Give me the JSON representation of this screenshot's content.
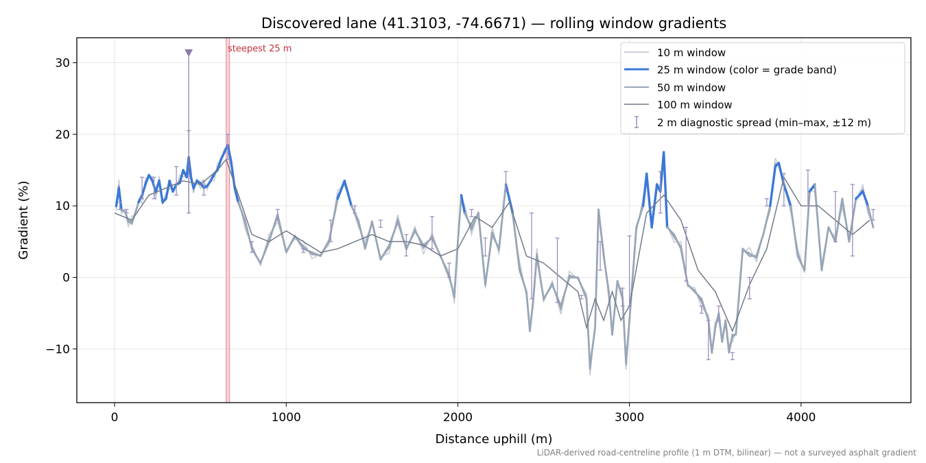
{
  "chart_data": {
    "type": "line",
    "title": "Discovered lane (41.3103, -74.6671) — rolling window gradients",
    "xlabel": "Distance uphill (m)",
    "ylabel": "Gradient (%)",
    "xlim": [
      -220,
      4640
    ],
    "ylim": [
      -17.5,
      33.5
    ],
    "x_ticks": [
      0,
      1000,
      2000,
      3000,
      4000
    ],
    "x_tick_labels": [
      "0",
      "1000",
      "2000",
      "3000",
      "4000"
    ],
    "y_ticks": [
      -10,
      0,
      10,
      20,
      30
    ],
    "y_tick_labels": [
      "−10",
      "0",
      "10",
      "20",
      "30"
    ],
    "grid": true,
    "legend_position": "top-right",
    "legend": [
      {
        "label": "10 m window",
        "color": "#b9c0cc"
      },
      {
        "label": "25 m window (color = grade band)",
        "color": "#3a78d6"
      },
      {
        "label": "50 m window",
        "color": "#98a6b6"
      },
      {
        "label": "100 m window",
        "color": "#707a88"
      },
      {
        "label": "2 m diagnostic spread (min–max, ±12 m)",
        "color": "#9a8fbf"
      }
    ],
    "grade_band_threshold": 10,
    "grade_band_colors": {
      "high": "#3a78d6",
      "low": "#98a6b6"
    },
    "steepest_25m": {
      "label": "steepest 25 m",
      "x_start": 650,
      "x_end": 670,
      "color": "#f4c2c8"
    },
    "spike_marker": {
      "x": 432,
      "y": 31.4,
      "color": "#8a7bab"
    },
    "footnote": "LiDAR-derived road-centreline profile (1 m DTM, bilinear) — not a surveyed asphalt gradient",
    "series": [
      {
        "name": "25 m window (color = grade band)",
        "x": [
          10,
          25,
          40,
          60,
          80,
          100,
          120,
          140,
          160,
          180,
          200,
          220,
          240,
          260,
          280,
          300,
          320,
          340,
          360,
          380,
          400,
          420,
          432,
          445,
          460,
          480,
          500,
          520,
          540,
          560,
          580,
          600,
          620,
          640,
          660,
          680,
          700,
          720,
          760,
          800,
          850,
          900,
          950,
          1000,
          1050,
          1100,
          1150,
          1200,
          1250,
          1300,
          1340,
          1380,
          1420,
          1460,
          1500,
          1550,
          1600,
          1650,
          1700,
          1750,
          1800,
          1850,
          1900,
          1950,
          1980,
          2000,
          2020,
          2040,
          2080,
          2120,
          2160,
          2200,
          2240,
          2280,
          2320,
          2360,
          2400,
          2420,
          2440,
          2460,
          2500,
          2550,
          2600,
          2650,
          2700,
          2750,
          2770,
          2800,
          2820,
          2850,
          2880,
          2900,
          2930,
          2960,
          2980,
          3000,
          3040,
          3080,
          3100,
          3130,
          3160,
          3180,
          3200,
          3220,
          3260,
          3300,
          3340,
          3380,
          3420,
          3460,
          3480,
          3500,
          3520,
          3540,
          3560,
          3580,
          3600,
          3620,
          3660,
          3700,
          3740,
          3780,
          3820,
          3850,
          3870,
          3900,
          3940,
          3980,
          4020,
          4050,
          4080,
          4120,
          4160,
          4200,
          4240,
          4280,
          4320,
          4360,
          4390,
          4420
        ],
        "y": [
          10,
          12.5,
          9.5,
          9.2,
          8,
          7.5,
          9,
          10.5,
          11.5,
          13,
          14.3,
          13.5,
          12,
          13.5,
          10.5,
          11,
          13.5,
          12,
          13,
          13.2,
          15,
          14,
          16.8,
          14,
          12.5,
          13.5,
          13.2,
          12.5,
          12.8,
          13.5,
          14.5,
          15,
          16.5,
          17.5,
          18.5,
          16,
          12.5,
          10.5,
          8,
          4,
          2,
          5,
          8.8,
          3.5,
          5.8,
          4,
          3.5,
          3,
          5.2,
          11,
          13.5,
          10,
          8,
          4,
          7.8,
          2.5,
          4.5,
          7.8,
          4,
          6.5,
          4.5,
          5.5,
          3,
          0,
          -2.5,
          5,
          11.5,
          9,
          7,
          9,
          -1,
          6,
          4,
          13,
          9,
          1,
          -2,
          -7.5,
          -3,
          3,
          -3,
          -1,
          -4,
          0,
          0,
          -3,
          -12.5,
          -7,
          9.5,
          3,
          -2,
          -8,
          -0.5,
          -3,
          -12,
          -6,
          7,
          10,
          14.5,
          7,
          13,
          12,
          17.5,
          7,
          6,
          4,
          -1,
          -2,
          -3,
          -6,
          -10.5,
          -7,
          -5,
          -9,
          -6,
          -10.5,
          -8,
          -8,
          4,
          3,
          3,
          6,
          10,
          15.5,
          16,
          13,
          10,
          3,
          1,
          12,
          13,
          1,
          7,
          5,
          11,
          5,
          11,
          12,
          10,
          7
        ]
      },
      {
        "name": "100 m window",
        "x": [
          0,
          100,
          200,
          300,
          400,
          500,
          600,
          650,
          700,
          800,
          900,
          1000,
          1100,
          1200,
          1300,
          1400,
          1500,
          1600,
          1700,
          1800,
          1900,
          2000,
          2100,
          2200,
          2300,
          2400,
          2500,
          2600,
          2700,
          2750,
          2800,
          2850,
          2900,
          2950,
          3000,
          3100,
          3200,
          3300,
          3400,
          3500,
          3600,
          3700,
          3800,
          3900,
          4000,
          4100,
          4200,
          4300,
          4400
        ],
        "y": [
          9,
          8,
          11.5,
          12.5,
          13.5,
          13,
          15,
          16.5,
          13,
          6,
          5,
          6.5,
          5,
          3.5,
          4,
          5,
          6,
          5,
          5,
          4.5,
          3,
          4,
          8.5,
          7,
          10.5,
          3,
          2,
          0,
          -2,
          -7,
          -3,
          -6,
          -2,
          -6,
          -4,
          9,
          11.5,
          8,
          1,
          -2,
          -7.5,
          -1,
          4,
          14,
          10,
          10,
          8,
          6,
          8
        ]
      },
      {
        "name": "2 m diagnostic spread (min–max, ±12 m)",
        "x": [
          30,
          70,
          160,
          230,
          360,
          432,
          520,
          660,
          800,
          950,
          1100,
          1260,
          1400,
          1550,
          1700,
          1850,
          1950,
          2080,
          2160,
          2280,
          2430,
          2580,
          2720,
          2830,
          2960,
          3000,
          3180,
          3330,
          3420,
          3460,
          3520,
          3600,
          3700,
          3800,
          3900,
          4040,
          4200,
          4300,
          4420
        ],
        "y_min": [
          9.5,
          9,
          11,
          11,
          11.5,
          9,
          11.5,
          16.5,
          3.5,
          8,
          3.5,
          5,
          9,
          7,
          3,
          4,
          0,
          8.5,
          3,
          12,
          -3,
          -3.5,
          -3,
          1,
          -4,
          -4,
          9,
          -0.5,
          -5,
          -11.5,
          -4,
          -11.5,
          -3,
          10,
          10,
          10,
          5,
          3,
          8
        ],
        "y_max": [
          10.5,
          9.5,
          14,
          14,
          15.5,
          20.5,
          13.5,
          20,
          5,
          9.5,
          4,
          8,
          10,
          8,
          6,
          8.5,
          2,
          9.5,
          5.5,
          14.8,
          9,
          5.5,
          -2.5,
          5,
          -1.5,
          5.8,
          14.8,
          7,
          -4,
          -6,
          -6,
          -10.5,
          0,
          11,
          14.5,
          15,
          12,
          13,
          9.5
        ]
      }
    ]
  }
}
